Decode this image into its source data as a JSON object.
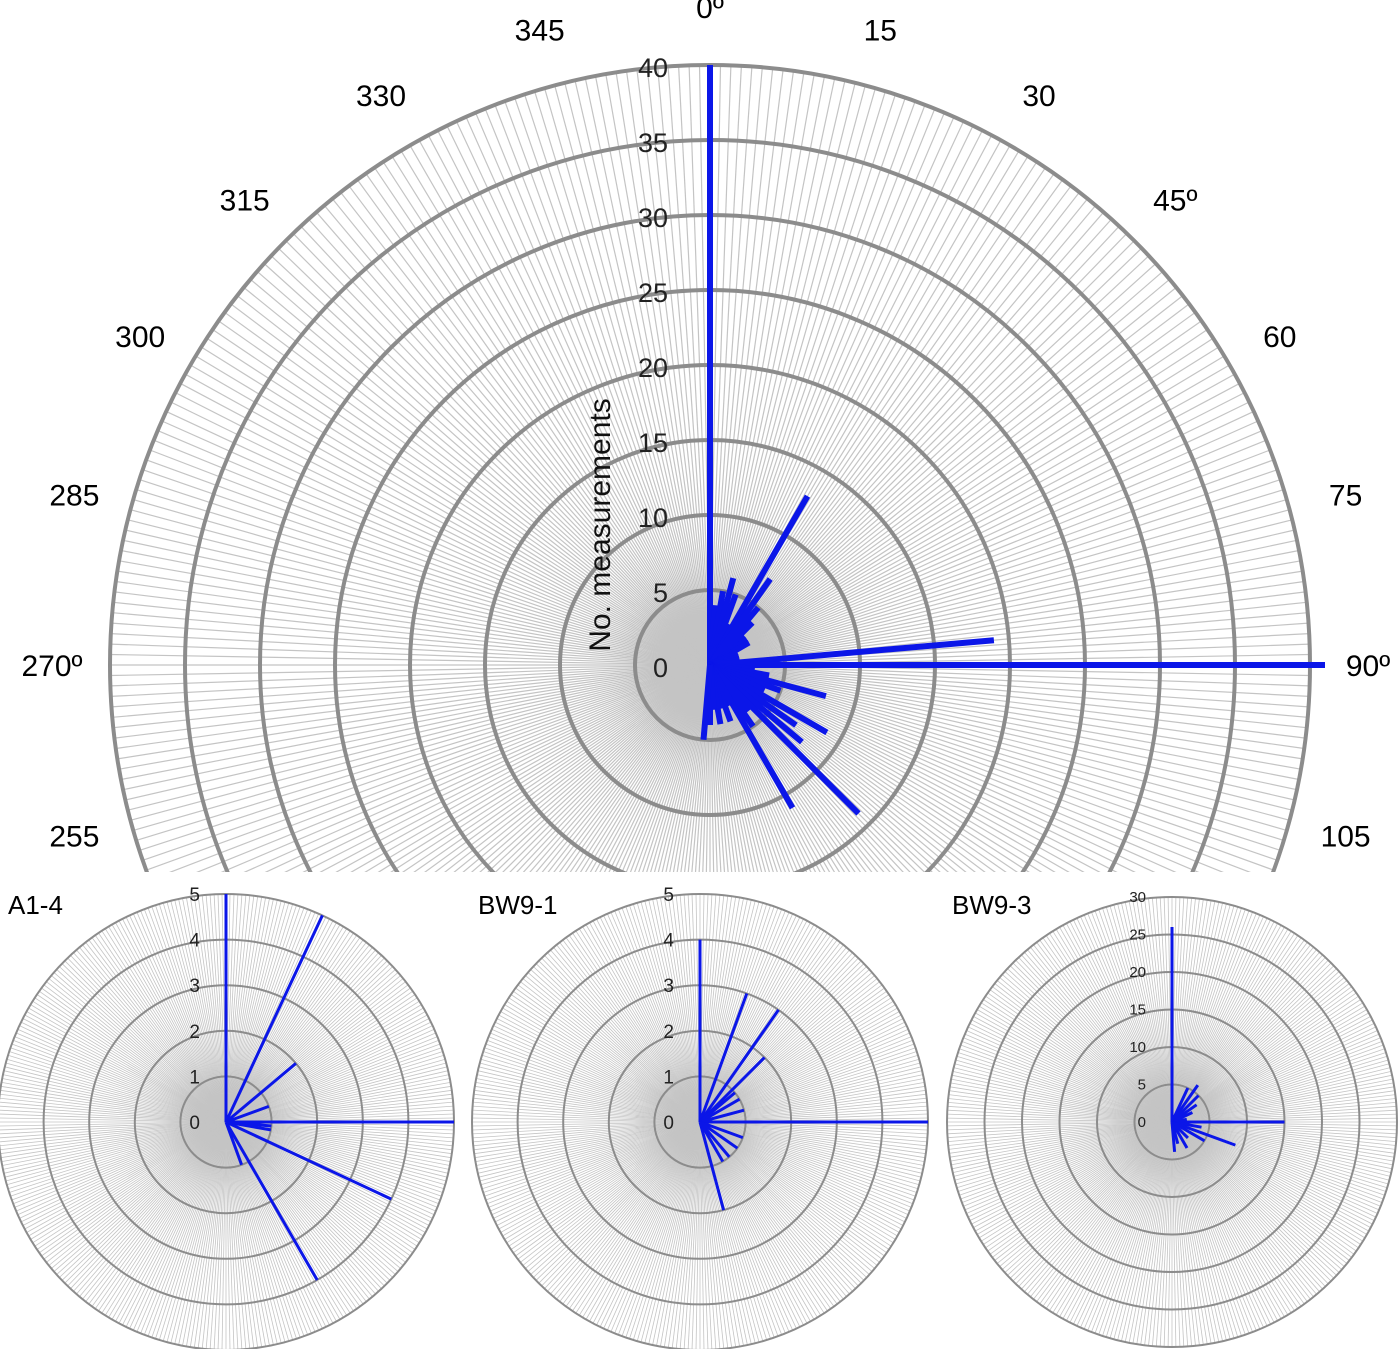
{
  "chart_data": [
    {
      "type": "polar-bar",
      "name": "",
      "ylabel": "No. measurements",
      "rlim": [
        0,
        40
      ],
      "rticks": [
        "0",
        "5",
        "10",
        "15",
        "20",
        "25",
        "30",
        "35",
        "40"
      ],
      "direction_labels": [
        {
          "angle": 0,
          "text": "0º"
        },
        {
          "angle": 15,
          "text": "15"
        },
        {
          "angle": 30,
          "text": "30"
        },
        {
          "angle": 45,
          "text": "45º"
        },
        {
          "angle": 60,
          "text": "60"
        },
        {
          "angle": 75,
          "text": "75"
        },
        {
          "angle": 90,
          "text": "90º"
        },
        {
          "angle": 105,
          "text": "105"
        },
        {
          "angle": 255,
          "text": "255"
        },
        {
          "angle": 270,
          "text": "270º"
        },
        {
          "angle": 285,
          "text": "285"
        },
        {
          "angle": 300,
          "text": "300"
        },
        {
          "angle": 315,
          "text": "315"
        },
        {
          "angle": 330,
          "text": "330"
        },
        {
          "angle": 345,
          "text": "345"
        }
      ],
      "series": [
        {
          "angles": [
            0,
            5,
            10,
            15,
            20,
            25,
            30,
            35,
            40,
            45,
            50,
            55,
            60,
            65,
            70,
            75,
            80,
            85,
            90,
            95,
            100,
            105,
            110,
            115,
            120,
            125,
            130,
            135,
            140,
            145,
            150,
            155,
            160,
            165,
            170,
            175,
            180,
            185
          ],
          "values": [
            40,
            4,
            5,
            6,
            5,
            3,
            13,
            7,
            5,
            4,
            3,
            3,
            3,
            2,
            2,
            2,
            2,
            19,
            41,
            3,
            4,
            8,
            5,
            4,
            9,
            7,
            8,
            14,
            4,
            5,
            11,
            3,
            4,
            3,
            4,
            3,
            4,
            5
          ]
        }
      ]
    },
    {
      "type": "polar-bar",
      "name": "A1-4",
      "rlim": [
        0,
        5
      ],
      "rticks": [
        "0",
        "1",
        "2",
        "3",
        "4",
        "5"
      ],
      "series": [
        {
          "angles": [
            0,
            25,
            50,
            70,
            90,
            95,
            100,
            115,
            150,
            160
          ],
          "values": [
            5,
            5,
            2,
            1,
            5,
            1,
            1,
            4,
            4,
            1
          ]
        }
      ]
    },
    {
      "type": "polar-bar",
      "name": "BW9-1",
      "rlim": [
        0,
        5
      ],
      "rticks": [
        "0",
        "1",
        "2",
        "3",
        "4",
        "5"
      ],
      "series": [
        {
          "angles": [
            0,
            20,
            35,
            45,
            50,
            60,
            75,
            90,
            110,
            125,
            140,
            150,
            165
          ],
          "values": [
            4,
            3,
            3,
            2,
            1,
            1,
            1,
            5,
            1,
            1,
            1,
            1,
            2
          ]
        }
      ]
    },
    {
      "type": "polar-bar",
      "name": "BW9-3",
      "rlim": [
        0,
        30
      ],
      "rticks": [
        "0",
        "5",
        "10",
        "15",
        "20",
        "25",
        "30"
      ],
      "series": [
        {
          "angles": [
            0,
            25,
            35,
            45,
            55,
            65,
            80,
            90,
            100,
            110,
            120,
            135,
            150,
            165,
            175
          ],
          "values": [
            26,
            5,
            6,
            5,
            4,
            3,
            2,
            15,
            4,
            9,
            5,
            3,
            4,
            3,
            4
          ]
        }
      ]
    }
  ]
}
